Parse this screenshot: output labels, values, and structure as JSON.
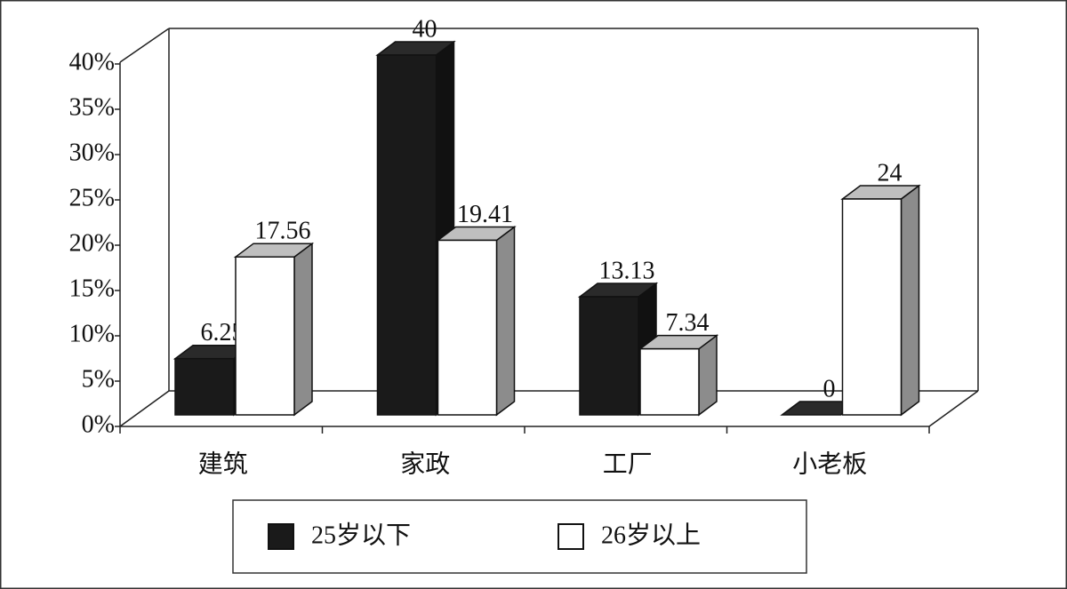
{
  "chart_data": {
    "type": "bar3d",
    "categories": [
      "建筑",
      "家政",
      "工厂",
      "小老板"
    ],
    "series": [
      {
        "name": "25岁以下",
        "color": "#1a1a1a",
        "values": [
          6.25,
          40,
          13.13,
          0
        ]
      },
      {
        "name": "26岁以上",
        "color": "#ffffff",
        "values": [
          17.56,
          19.41,
          7.34,
          24
        ]
      }
    ],
    "ylim": [
      0,
      40
    ],
    "yticks": [
      {
        "value": 0,
        "label": "0%"
      },
      {
        "value": 5,
        "label": "5%"
      },
      {
        "value": 10,
        "label": "10%"
      },
      {
        "value": 15,
        "label": "15%"
      },
      {
        "value": 20,
        "label": "20%"
      },
      {
        "value": 25,
        "label": "25%"
      },
      {
        "value": 30,
        "label": "30%"
      },
      {
        "value": 35,
        "label": "35%"
      },
      {
        "value": 40,
        "label": "40%"
      }
    ],
    "legend": "bottom"
  }
}
